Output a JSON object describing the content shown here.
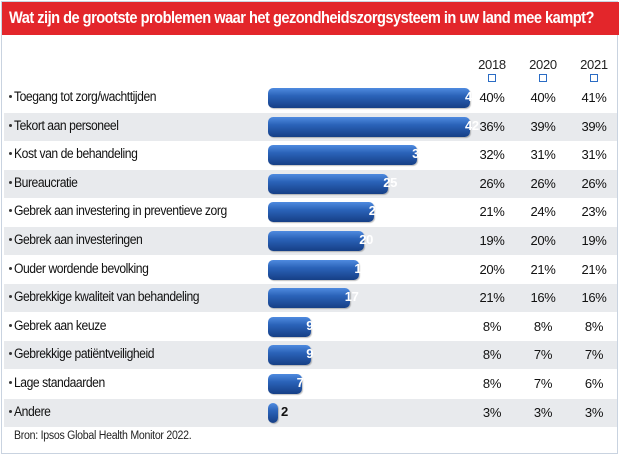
{
  "title": "Wat zijn de grootste problemen waar het gezondheidszorgsysteem in uw land mee kampt?",
  "source": "Bron: Ipsos Global Health Monitor 2022.",
  "colors": {
    "title_bar": "#e3262b",
    "bar": "#2a62b8",
    "year_marker": "#2b6cc4",
    "row_shade": "#e8eaed"
  },
  "chart_data": {
    "type": "bar",
    "orientation": "horizontal",
    "title": "Wat zijn de grootste problemen waar het gezondheidszorgsysteem in uw land mee kampt?",
    "categories": [
      "Toegang tot zorg/wachttijden",
      "Tekort aan personeel",
      "Kost van de behandeling",
      "Bureaucratie",
      "Gebrek aan investering in preventieve zorg",
      "Gebrek aan investeringen",
      "Ouder wordende bevolking",
      "Gebrekkige kwaliteit van behandeling",
      "Gebrek aan keuze",
      "Gebrekkige patiëntveiligheid",
      "Lage standaarden",
      "Andere"
    ],
    "values": [
      42,
      42,
      31,
      25,
      22,
      20,
      19,
      17,
      9,
      9,
      7,
      2
    ],
    "value_labels": [
      "42%",
      "42",
      "31",
      "25",
      "22",
      "20",
      "19",
      "17",
      "9",
      "9",
      "7",
      "2"
    ],
    "xlim": [
      0,
      42
    ],
    "years": [
      "2018",
      "2020",
      "2021"
    ],
    "table": [
      [
        "40%",
        "40%",
        "41%"
      ],
      [
        "36%",
        "39%",
        "39%"
      ],
      [
        "32%",
        "31%",
        "31%"
      ],
      [
        "26%",
        "26%",
        "26%"
      ],
      [
        "21%",
        "24%",
        "23%"
      ],
      [
        "19%",
        "20%",
        "19%"
      ],
      [
        "20%",
        "21%",
        "21%"
      ],
      [
        "21%",
        "16%",
        "16%"
      ],
      [
        "8%",
        "8%",
        "8%"
      ],
      [
        "8%",
        "7%",
        "7%"
      ],
      [
        "8%",
        "7%",
        "6%"
      ],
      [
        "3%",
        "3%",
        "3%"
      ]
    ],
    "grid": false,
    "legend": "none"
  }
}
